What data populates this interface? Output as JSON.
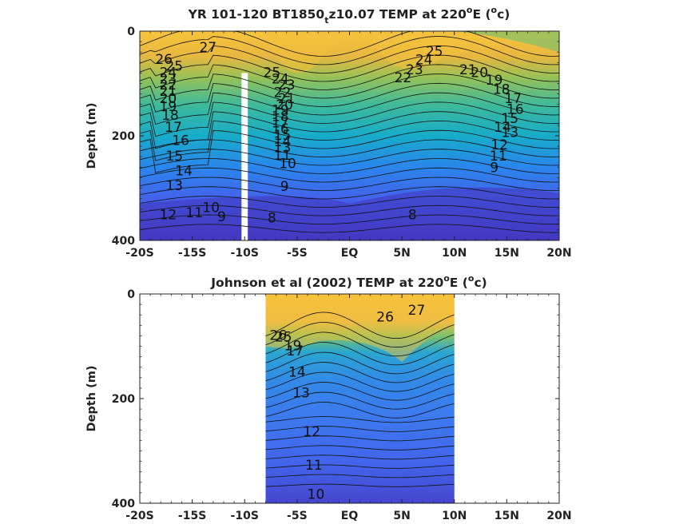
{
  "chart_data": [
    {
      "type": "heatmap",
      "title": "YR 101-120 BT1850",
      "title_subscript": "t",
      "title_rest": "z10.07 TEMP at 220",
      "title_sup_deg": "o",
      "title_unit_pre": "E (",
      "title_unit_sup": "o",
      "title_unit_post": "c)",
      "ylabel": "Depth (m)",
      "xlabel": "",
      "x_ticks": [
        -20,
        -15,
        -10,
        -5,
        0,
        5,
        10,
        15,
        20
      ],
      "x_tick_labels": [
        "-20S",
        "-15S",
        "-10S",
        "-5S",
        "EQ",
        "5N",
        "10N",
        "15N",
        "20N"
      ],
      "y_ticks": [
        0,
        200,
        400
      ],
      "y_tick_labels": [
        "0",
        "200",
        "400"
      ],
      "xlim": [
        -20,
        20
      ],
      "ylim": [
        400,
        0
      ],
      "data_extent_x": [
        -20,
        20
      ],
      "missing_column_x": [
        -10.3,
        -9.7
      ],
      "missing_column_top_depth": 80,
      "colormap": "parula",
      "color_range": [
        7,
        29
      ],
      "contour_labels": [
        {
          "text": "27",
          "x": -13.5,
          "y": 32
        },
        {
          "text": "26",
          "x": -17.7,
          "y": 55
        },
        {
          "text": "25",
          "x": -16.7,
          "y": 68
        },
        {
          "text": "24",
          "x": -17.3,
          "y": 80
        },
        {
          "text": "23",
          "x": -17.3,
          "y": 92
        },
        {
          "text": "22",
          "x": -17.3,
          "y": 104
        },
        {
          "text": "21",
          "x": -17.3,
          "y": 116
        },
        {
          "text": "20",
          "x": -17.3,
          "y": 130
        },
        {
          "text": "19",
          "x": -17.3,
          "y": 145
        },
        {
          "text": "18",
          "x": -17.1,
          "y": 162
        },
        {
          "text": "17",
          "x": -16.8,
          "y": 185
        },
        {
          "text": "16",
          "x": -16.1,
          "y": 210
        },
        {
          "text": "15",
          "x": -16.7,
          "y": 240
        },
        {
          "text": "14",
          "x": -15.8,
          "y": 268
        },
        {
          "text": "13",
          "x": -16.7,
          "y": 296
        },
        {
          "text": "12",
          "x": -17.3,
          "y": 352
        },
        {
          "text": "11",
          "x": -14.8,
          "y": 348
        },
        {
          "text": "10",
          "x": -13.2,
          "y": 338
        },
        {
          "text": "9",
          "x": -12.2,
          "y": 356
        },
        {
          "text": "25",
          "x": -7.4,
          "y": 80
        },
        {
          "text": "24",
          "x": -6.6,
          "y": 92
        },
        {
          "text": "23",
          "x": -6.0,
          "y": 104
        },
        {
          "text": "22",
          "x": -6.4,
          "y": 118
        },
        {
          "text": "21",
          "x": -6.0,
          "y": 130
        },
        {
          "text": "20",
          "x": -6.2,
          "y": 142
        },
        {
          "text": "19",
          "x": -6.6,
          "y": 152
        },
        {
          "text": "18",
          "x": -6.6,
          "y": 164
        },
        {
          "text": "17",
          "x": -6.6,
          "y": 176
        },
        {
          "text": "16",
          "x": -6.6,
          "y": 188
        },
        {
          "text": "15",
          "x": -6.4,
          "y": 200
        },
        {
          "text": "14",
          "x": -6.4,
          "y": 212
        },
        {
          "text": "13",
          "x": -6.4,
          "y": 224
        },
        {
          "text": "11",
          "x": -6.4,
          "y": 238
        },
        {
          "text": "10",
          "x": -5.9,
          "y": 254
        },
        {
          "text": "9",
          "x": -6.2,
          "y": 298
        },
        {
          "text": "8",
          "x": -7.4,
          "y": 358
        },
        {
          "text": "8",
          "x": 6.0,
          "y": 352
        },
        {
          "text": "25",
          "x": 8.1,
          "y": 40
        },
        {
          "text": "24",
          "x": 7.1,
          "y": 56
        },
        {
          "text": "23",
          "x": 6.2,
          "y": 75
        },
        {
          "text": "22",
          "x": 5.1,
          "y": 90
        },
        {
          "text": "21",
          "x": 11.3,
          "y": 75
        },
        {
          "text": "20",
          "x": 12.4,
          "y": 80
        },
        {
          "text": "19",
          "x": 13.8,
          "y": 95
        },
        {
          "text": "18",
          "x": 14.5,
          "y": 112
        },
        {
          "text": "17",
          "x": 15.6,
          "y": 130
        },
        {
          "text": "16",
          "x": 15.8,
          "y": 150
        },
        {
          "text": "15",
          "x": 15.3,
          "y": 168
        },
        {
          "text": "14",
          "x": 14.6,
          "y": 185
        },
        {
          "text": "13",
          "x": 15.3,
          "y": 195
        },
        {
          "text": "12",
          "x": 14.3,
          "y": 218
        },
        {
          "text": "11",
          "x": 14.2,
          "y": 240
        },
        {
          "text": "9",
          "x": 13.8,
          "y": 262
        }
      ]
    },
    {
      "type": "heatmap",
      "title": "Johnson et al (2002) TEMP at 220",
      "title_sup_deg": "o",
      "title_unit_pre": "E (",
      "title_unit_sup": "o",
      "title_unit_post": "c)",
      "ylabel": "Depth (m)",
      "xlabel": "",
      "x_ticks": [
        -20,
        -15,
        -10,
        -5,
        0,
        5,
        10,
        15,
        20
      ],
      "x_tick_labels": [
        "-20S",
        "-15S",
        "-10S",
        "-5S",
        "EQ",
        "5N",
        "10N",
        "15N",
        "20N"
      ],
      "y_ticks": [
        0,
        200,
        400
      ],
      "y_tick_labels": [
        "0",
        "200",
        "400"
      ],
      "xlim": [
        -20,
        20
      ],
      "ylim": [
        400,
        0
      ],
      "data_extent_x": [
        -8,
        10
      ],
      "colormap": "parula",
      "color_range": [
        7,
        29
      ],
      "contour_labels": [
        {
          "text": "27",
          "x": 6.4,
          "y": 32
        },
        {
          "text": "26",
          "x": 3.4,
          "y": 45
        },
        {
          "text": "26",
          "x": -6.8,
          "y": 80
        },
        {
          "text": "25",
          "x": -6.3,
          "y": 83
        },
        {
          "text": "19",
          "x": -5.4,
          "y": 100
        },
        {
          "text": "17",
          "x": -5.2,
          "y": 110
        },
        {
          "text": "14",
          "x": -5.0,
          "y": 150
        },
        {
          "text": "13",
          "x": -4.6,
          "y": 190
        },
        {
          "text": "12",
          "x": -3.6,
          "y": 264
        },
        {
          "text": "11",
          "x": -3.4,
          "y": 328
        },
        {
          "text": "10",
          "x": -3.2,
          "y": 384
        }
      ]
    }
  ]
}
